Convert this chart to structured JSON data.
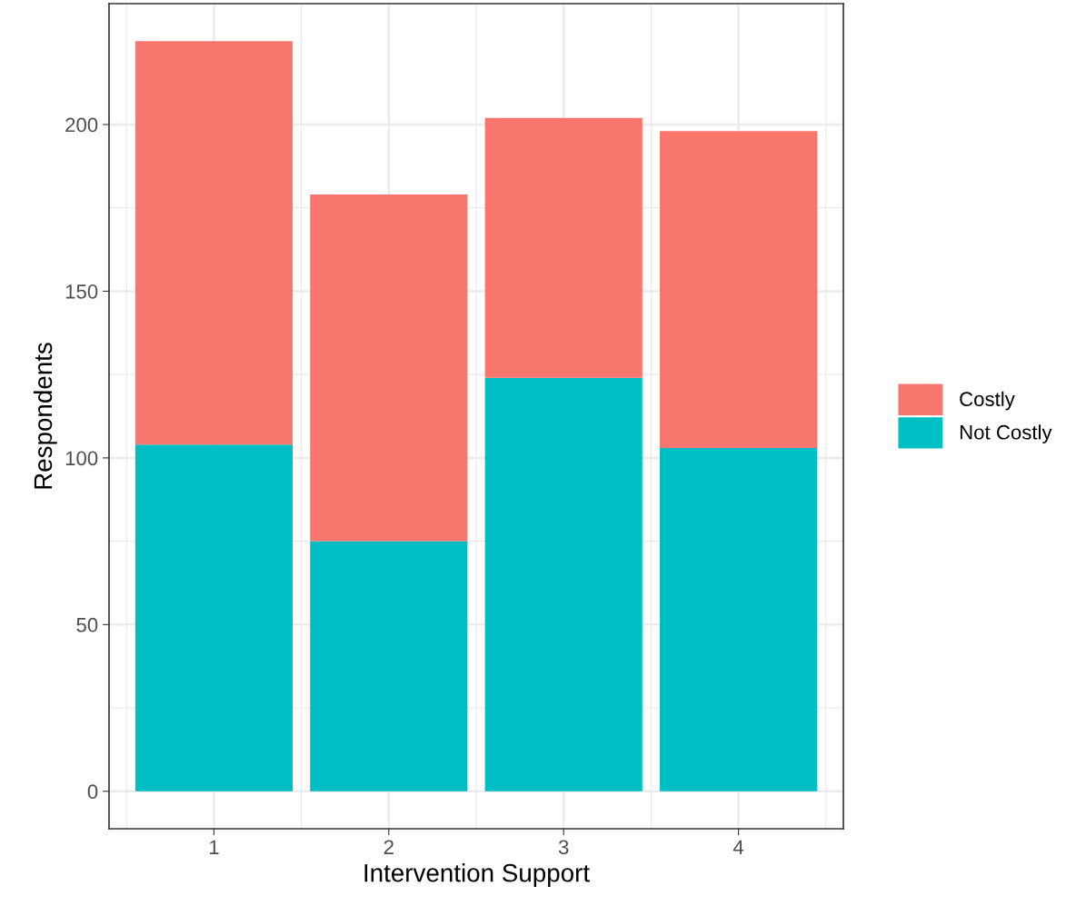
{
  "chart_data": {
    "type": "bar",
    "stacked": true,
    "xlabel": "Intervention Support",
    "ylabel": "Respondents",
    "categories": [
      "1",
      "2",
      "3",
      "4"
    ],
    "series": [
      {
        "name": "Not Costly",
        "color": "#00bfc4",
        "values": [
          104,
          75,
          124,
          103
        ]
      },
      {
        "name": "Costly",
        "color": "#f8766d",
        "values": [
          121,
          104,
          78,
          95
        ]
      }
    ],
    "ylim": [
      -11.25,
      236.25
    ],
    "yticks": [
      0,
      50,
      100,
      150,
      200
    ],
    "grid": true,
    "legend": "right"
  }
}
